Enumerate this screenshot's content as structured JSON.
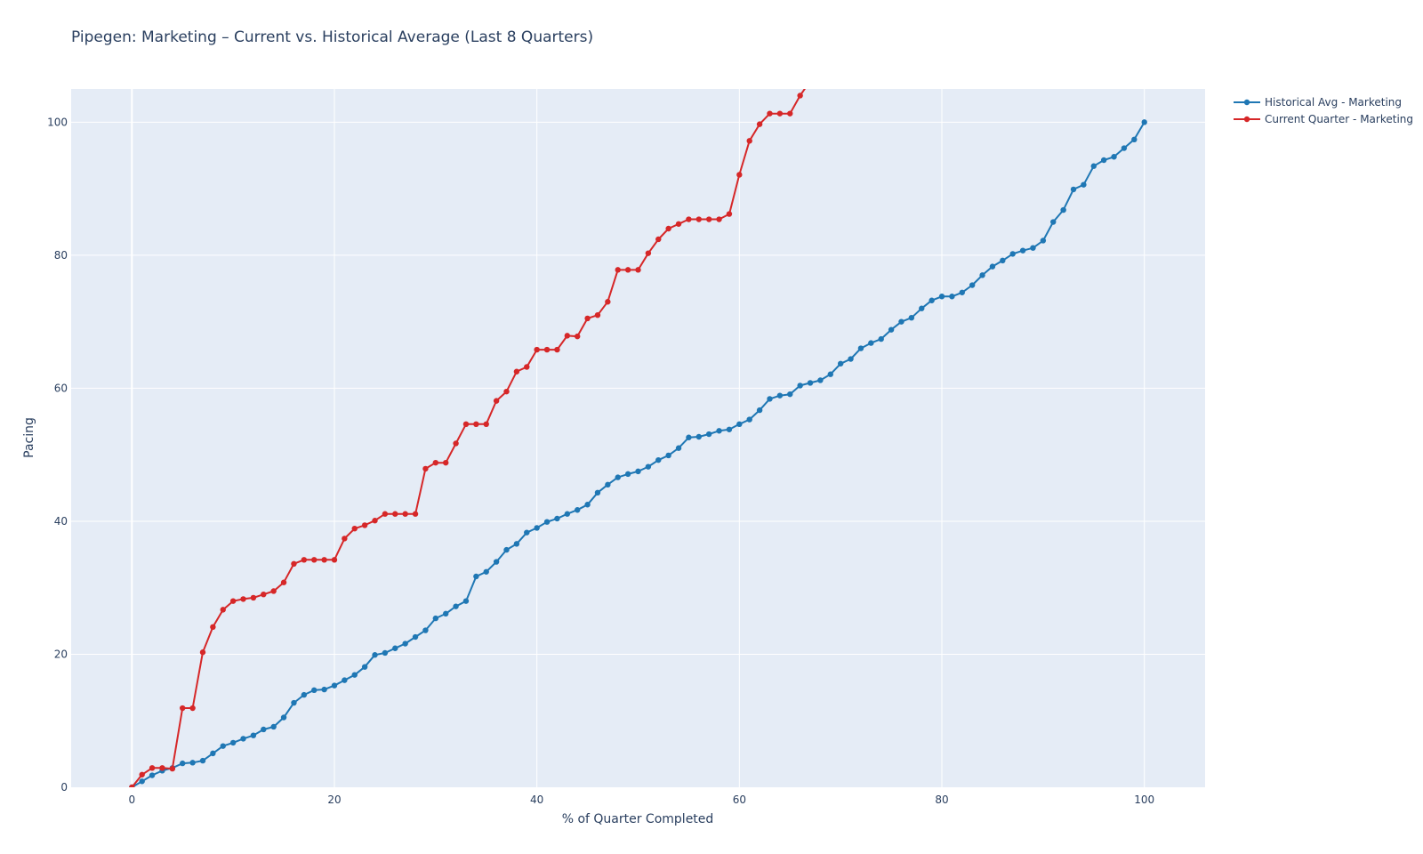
{
  "chart_data": {
    "type": "line",
    "title": "Pipegen: Marketing – Current vs. Historical Average (Last 8 Quarters)",
    "xlabel": "% of Quarter Completed",
    "ylabel": "Pacing",
    "xlim": [
      -6,
      106
    ],
    "ylim": [
      0,
      105
    ],
    "xticks": [
      0,
      20,
      40,
      60,
      80,
      100
    ],
    "yticks": [
      0,
      20,
      40,
      60,
      80,
      100
    ],
    "grid": true,
    "legend_position": "top-right",
    "colors": {
      "plot_bg": "#E5ECF6",
      "grid": "#ffffff",
      "text": "#2a3f5f"
    },
    "series": [
      {
        "name": "Historical Avg - Marketing",
        "color": "#1f77b4",
        "x": [
          0,
          1,
          2,
          3,
          4,
          5,
          6,
          7,
          8,
          9,
          10,
          11,
          12,
          13,
          14,
          15,
          16,
          17,
          18,
          19,
          20,
          21,
          22,
          23,
          24,
          25,
          26,
          27,
          28,
          29,
          30,
          31,
          32,
          33,
          34,
          35,
          36,
          37,
          38,
          39,
          40,
          41,
          42,
          43,
          44,
          45,
          46,
          47,
          48,
          49,
          50,
          51,
          52,
          53,
          54,
          55,
          56,
          57,
          58,
          59,
          60,
          61,
          62,
          63,
          64,
          65,
          66,
          67,
          68,
          69,
          70,
          71,
          72,
          73,
          74,
          75,
          76,
          77,
          78,
          79,
          80,
          81,
          82,
          83,
          84,
          85,
          86,
          87,
          88,
          89,
          90,
          91,
          92,
          93,
          94,
          95,
          96,
          97,
          98,
          99,
          100
        ],
        "values": [
          0,
          0.9,
          1.8,
          2.5,
          2.9,
          3.6,
          3.7,
          4,
          5.1,
          6.2,
          6.7,
          7.3,
          7.8,
          8.7,
          9.1,
          10.5,
          12.7,
          13.9,
          14.6,
          14.7,
          15.3,
          16.1,
          16.9,
          18.1,
          19.9,
          20.2,
          20.9,
          21.6,
          22.6,
          23.6,
          25.4,
          26.1,
          27.2,
          28,
          31.7,
          32.4,
          33.9,
          35.7,
          36.6,
          38.3,
          39,
          39.9,
          40.4,
          41.1,
          41.7,
          42.5,
          44.3,
          45.5,
          46.6,
          47.1,
          47.5,
          48.2,
          49.2,
          49.9,
          51,
          52.6,
          52.7,
          53.1,
          53.6,
          53.8,
          54.6,
          55.3,
          56.7,
          58.4,
          58.9,
          59.1,
          60.4,
          60.8,
          61.2,
          62.1,
          63.7,
          64.4,
          66,
          66.8,
          67.4,
          68.8,
          70,
          70.6,
          72,
          73.2,
          73.8,
          73.8,
          74.4,
          75.5,
          77,
          78.3,
          79.2,
          80.2,
          80.7,
          81.1,
          82.2,
          85,
          86.8,
          89.9,
          90.6,
          93.4,
          94.3,
          94.8,
          96.1,
          97.4,
          100
        ]
      },
      {
        "name": "Current Quarter - Marketing",
        "color": "#d62728",
        "x": [
          0,
          1,
          2,
          3,
          4,
          5,
          6,
          7,
          8,
          9,
          10,
          11,
          12,
          13,
          14,
          15,
          16,
          17,
          18,
          19,
          20,
          21,
          22,
          23,
          24,
          25,
          26,
          27,
          28,
          29,
          30,
          31,
          32,
          33,
          34,
          35,
          36,
          37,
          38,
          39,
          40,
          41,
          42,
          43,
          44,
          45,
          46,
          47,
          48,
          49,
          50,
          51,
          52,
          53,
          54,
          55,
          56,
          57,
          58,
          59,
          60,
          61,
          62,
          63,
          64,
          65,
          66,
          67
        ],
        "values": [
          0,
          1.9,
          2.9,
          2.9,
          2.8,
          11.9,
          11.9,
          20.3,
          24.1,
          26.7,
          28,
          28.3,
          28.5,
          29,
          29.5,
          30.8,
          33.6,
          34.2,
          34.2,
          34.2,
          34.2,
          37.4,
          38.9,
          39.4,
          40.1,
          41.1,
          41.1,
          41.1,
          41.1,
          47.9,
          48.8,
          48.8,
          51.7,
          54.6,
          54.6,
          54.6,
          58.1,
          59.5,
          62.5,
          63.2,
          65.8,
          65.8,
          65.8,
          67.9,
          67.8,
          70.5,
          71,
          73,
          77.8,
          77.8,
          77.8,
          80.3,
          82.4,
          84,
          84.7,
          85.4,
          85.4,
          85.4,
          85.4,
          86.2,
          92.1,
          97.2,
          99.7,
          101.3,
          101.3,
          101.3,
          104,
          106.2
        ]
      }
    ]
  }
}
